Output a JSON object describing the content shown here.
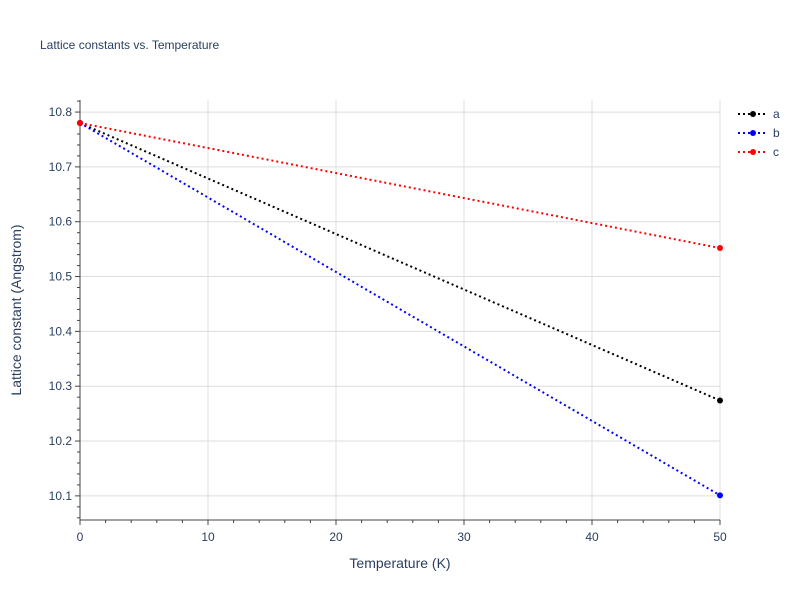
{
  "chart_data": {
    "type": "line",
    "title": "Lattice constants vs. Temperature",
    "xlabel": "Temperature (K)",
    "ylabel": "Lattice constant (Angstrom)",
    "xlim": [
      0,
      50
    ],
    "ylim": [
      10.056,
      10.822
    ],
    "xticks": [
      0,
      10,
      20,
      30,
      40,
      50
    ],
    "xtick_labels": [
      "0",
      "10",
      "20",
      "30",
      "40",
      "50"
    ],
    "yticks": [
      10.1,
      10.2,
      10.3,
      10.4,
      10.5,
      10.6,
      10.7,
      10.8
    ],
    "ytick_labels": [
      "10.1",
      "10.2",
      "10.3",
      "10.4",
      "10.5",
      "10.6",
      "10.7",
      "10.8"
    ],
    "grid": true,
    "legend_position": "top-right",
    "series": [
      {
        "name": "a",
        "color": "#000000",
        "line_style": "dotted",
        "x": [
          0,
          50
        ],
        "y": [
          10.78,
          10.274
        ]
      },
      {
        "name": "b",
        "color": "#0000ff",
        "line_style": "dotted",
        "x": [
          0,
          50
        ],
        "y": [
          10.78,
          10.101
        ]
      },
      {
        "name": "c",
        "color": "#ff0000",
        "line_style": "dotted",
        "x": [
          0,
          50
        ],
        "y": [
          10.78,
          10.552
        ]
      }
    ]
  }
}
